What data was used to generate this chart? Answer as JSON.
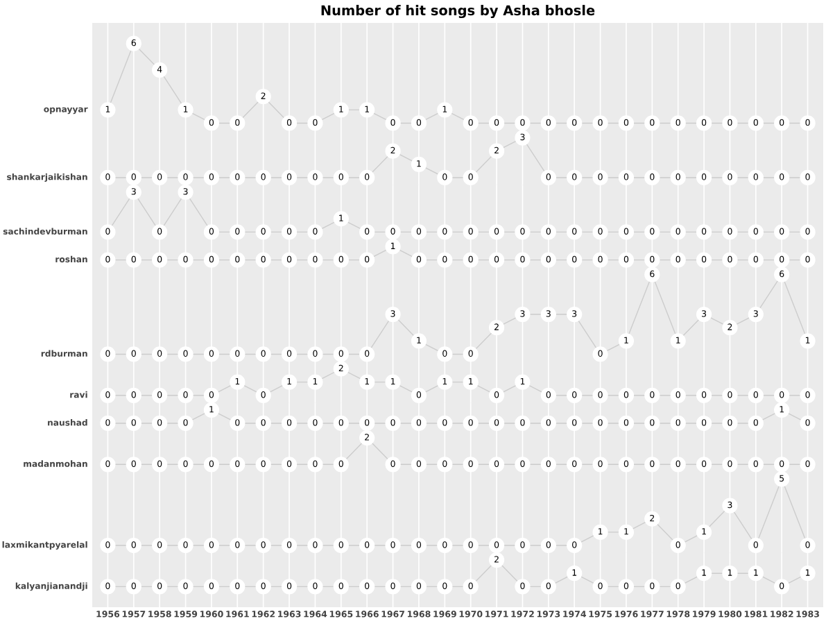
{
  "chart_data": [
    {
      "type": "line",
      "title": "Number of hit songs by Asha bhosle",
      "ylabel": "opnayyar",
      "categories": [
        "1956",
        "1957",
        "1958",
        "1959",
        "1960",
        "1961",
        "1962",
        "1963",
        "1964",
        "1965",
        "1966",
        "1967",
        "1968",
        "1969",
        "1970",
        "1971",
        "1972",
        "1973",
        "1974",
        "1975",
        "1976",
        "1977",
        "1978",
        "1979",
        "1980",
        "1981",
        "1982",
        "1983"
      ],
      "values": [
        1,
        6,
        4,
        1,
        0,
        0,
        2,
        0,
        0,
        1,
        1,
        0,
        0,
        1,
        0,
        0,
        0,
        0,
        0,
        0,
        0,
        0,
        0,
        0,
        0,
        0,
        0,
        0
      ],
      "color": "#cccccc",
      "data_labels": true,
      "marker": "circle",
      "line_style": "solid",
      "grid": "x",
      "tick_labels": false
    },
    {
      "type": "line",
      "ylabel": "shankarjaikishan",
      "categories": [
        "1956",
        "1957",
        "1958",
        "1959",
        "1960",
        "1961",
        "1962",
        "1963",
        "1964",
        "1965",
        "1966",
        "1967",
        "1968",
        "1969",
        "1970",
        "1971",
        "1972",
        "1973",
        "1974",
        "1975",
        "1976",
        "1977",
        "1978",
        "1979",
        "1980",
        "1981",
        "1982",
        "1983"
      ],
      "values": [
        0,
        0,
        0,
        0,
        0,
        0,
        0,
        0,
        0,
        0,
        0,
        2,
        1,
        0,
        0,
        2,
        3,
        0,
        0,
        0,
        0,
        0,
        0,
        0,
        0,
        0,
        0,
        0
      ],
      "color": "#cccccc",
      "data_labels": true,
      "marker": "circle",
      "line_style": "solid",
      "grid": "x",
      "tick_labels": false
    },
    {
      "type": "line",
      "ylabel": "sachindevburman",
      "categories": [
        "1956",
        "1957",
        "1958",
        "1959",
        "1960",
        "1961",
        "1962",
        "1963",
        "1964",
        "1965",
        "1966",
        "1967",
        "1968",
        "1969",
        "1970",
        "1971",
        "1972",
        "1973",
        "1974",
        "1975",
        "1976",
        "1977",
        "1978",
        "1979",
        "1980",
        "1981",
        "1982",
        "1983"
      ],
      "values": [
        0,
        3,
        0,
        3,
        0,
        0,
        0,
        0,
        0,
        1,
        0,
        0,
        0,
        0,
        0,
        0,
        0,
        0,
        0,
        0,
        0,
        0,
        0,
        0,
        0,
        0,
        0,
        0
      ],
      "color": "#cccccc",
      "data_labels": true,
      "marker": "circle",
      "line_style": "solid",
      "grid": "x",
      "tick_labels": false
    },
    {
      "type": "line",
      "ylabel": "roshan",
      "categories": [
        "1956",
        "1957",
        "1958",
        "1959",
        "1960",
        "1961",
        "1962",
        "1963",
        "1964",
        "1965",
        "1966",
        "1967",
        "1968",
        "1969",
        "1970",
        "1971",
        "1972",
        "1973",
        "1974",
        "1975",
        "1976",
        "1977",
        "1978",
        "1979",
        "1980",
        "1981",
        "1982",
        "1983"
      ],
      "values": [
        0,
        0,
        0,
        0,
        0,
        0,
        0,
        0,
        0,
        0,
        0,
        1,
        0,
        0,
        0,
        0,
        0,
        0,
        0,
        0,
        0,
        0,
        0,
        0,
        0,
        0,
        0,
        0
      ],
      "color": "#cccccc",
      "data_labels": true,
      "marker": "circle",
      "line_style": "solid",
      "grid": "x",
      "tick_labels": false
    },
    {
      "type": "line",
      "ylabel": "rdburman",
      "categories": [
        "1956",
        "1957",
        "1958",
        "1959",
        "1960",
        "1961",
        "1962",
        "1963",
        "1964",
        "1965",
        "1966",
        "1967",
        "1968",
        "1969",
        "1970",
        "1971",
        "1972",
        "1973",
        "1974",
        "1975",
        "1976",
        "1977",
        "1978",
        "1979",
        "1980",
        "1981",
        "1982",
        "1983"
      ],
      "values": [
        0,
        0,
        0,
        0,
        0,
        0,
        0,
        0,
        0,
        0,
        0,
        3,
        1,
        0,
        0,
        2,
        3,
        3,
        3,
        0,
        1,
        6,
        1,
        3,
        2,
        3,
        6,
        1
      ],
      "color": "#cccccc",
      "data_labels": true,
      "marker": "circle",
      "line_style": "solid",
      "grid": "x",
      "tick_labels": false
    },
    {
      "type": "line",
      "ylabel": "ravi",
      "categories": [
        "1956",
        "1957",
        "1958",
        "1959",
        "1960",
        "1961",
        "1962",
        "1963",
        "1964",
        "1965",
        "1966",
        "1967",
        "1968",
        "1969",
        "1970",
        "1971",
        "1972",
        "1973",
        "1974",
        "1975",
        "1976",
        "1977",
        "1978",
        "1979",
        "1980",
        "1981",
        "1982",
        "1983"
      ],
      "values": [
        0,
        0,
        0,
        0,
        0,
        1,
        0,
        1,
        1,
        2,
        1,
        1,
        0,
        1,
        1,
        0,
        1,
        0,
        0,
        0,
        0,
        0,
        0,
        0,
        0,
        0,
        0,
        0
      ],
      "color": "#cccccc",
      "data_labels": true,
      "marker": "circle",
      "line_style": "solid",
      "grid": "x",
      "tick_labels": false
    },
    {
      "type": "line",
      "ylabel": "naushad",
      "categories": [
        "1956",
        "1957",
        "1958",
        "1959",
        "1960",
        "1961",
        "1962",
        "1963",
        "1964",
        "1965",
        "1966",
        "1967",
        "1968",
        "1969",
        "1970",
        "1971",
        "1972",
        "1973",
        "1974",
        "1975",
        "1976",
        "1977",
        "1978",
        "1979",
        "1980",
        "1981",
        "1982",
        "1983"
      ],
      "values": [
        0,
        0,
        0,
        0,
        1,
        0,
        0,
        0,
        0,
        0,
        0,
        0,
        0,
        0,
        0,
        0,
        0,
        0,
        0,
        0,
        0,
        0,
        0,
        0,
        0,
        0,
        1,
        0
      ],
      "color": "#cccccc",
      "data_labels": true,
      "marker": "circle",
      "line_style": "solid",
      "grid": "x",
      "tick_labels": false
    },
    {
      "type": "line",
      "ylabel": "madanmohan",
      "categories": [
        "1956",
        "1957",
        "1958",
        "1959",
        "1960",
        "1961",
        "1962",
        "1963",
        "1964",
        "1965",
        "1966",
        "1967",
        "1968",
        "1969",
        "1970",
        "1971",
        "1972",
        "1973",
        "1974",
        "1975",
        "1976",
        "1977",
        "1978",
        "1979",
        "1980",
        "1981",
        "1982",
        "1983"
      ],
      "values": [
        0,
        0,
        0,
        0,
        0,
        0,
        0,
        0,
        0,
        0,
        2,
        0,
        0,
        0,
        0,
        0,
        0,
        0,
        0,
        0,
        0,
        0,
        0,
        0,
        0,
        0,
        0,
        0
      ],
      "color": "#cccccc",
      "data_labels": true,
      "marker": "circle",
      "line_style": "solid",
      "grid": "x",
      "tick_labels": false
    },
    {
      "type": "line",
      "ylabel": "laxmikantpyarelal",
      "categories": [
        "1956",
        "1957",
        "1958",
        "1959",
        "1960",
        "1961",
        "1962",
        "1963",
        "1964",
        "1965",
        "1966",
        "1967",
        "1968",
        "1969",
        "1970",
        "1971",
        "1972",
        "1973",
        "1974",
        "1975",
        "1976",
        "1977",
        "1978",
        "1979",
        "1980",
        "1981",
        "1982",
        "1983"
      ],
      "values": [
        0,
        0,
        0,
        0,
        0,
        0,
        0,
        0,
        0,
        0,
        0,
        0,
        0,
        0,
        0,
        0,
        0,
        0,
        0,
        1,
        1,
        2,
        0,
        1,
        3,
        0,
        5,
        0
      ],
      "color": "#cccccc",
      "data_labels": true,
      "marker": "circle",
      "line_style": "solid",
      "grid": "x",
      "tick_labels": false
    },
    {
      "type": "line",
      "ylabel": "kalyanjianandji",
      "categories": [
        "1956",
        "1957",
        "1958",
        "1959",
        "1960",
        "1961",
        "1962",
        "1963",
        "1964",
        "1965",
        "1966",
        "1967",
        "1968",
        "1969",
        "1970",
        "1971",
        "1972",
        "1973",
        "1974",
        "1975",
        "1976",
        "1977",
        "1978",
        "1979",
        "1980",
        "1981",
        "1982",
        "1983"
      ],
      "values": [
        0,
        0,
        0,
        0,
        0,
        0,
        0,
        0,
        0,
        0,
        0,
        0,
        0,
        0,
        0,
        2,
        0,
        0,
        1,
        0,
        0,
        0,
        0,
        1,
        1,
        1,
        0,
        1
      ],
      "color": "#cccccc",
      "data_labels": true,
      "marker": "circle",
      "line_style": "solid",
      "grid": "x",
      "tick_labels": "x"
    }
  ]
}
